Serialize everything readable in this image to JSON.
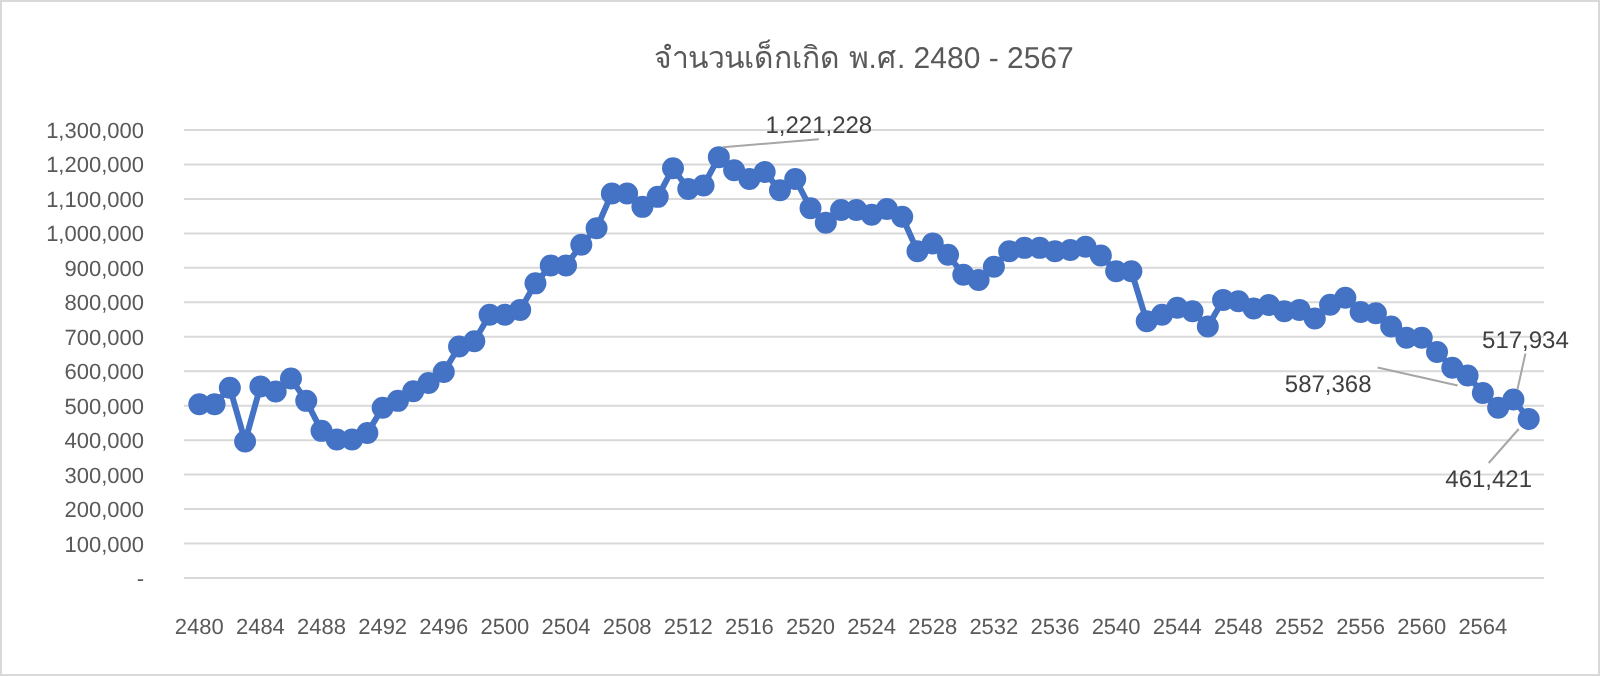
{
  "chart_data": {
    "type": "line",
    "title": "จำนวนเด็กเกิด พ.ศ. 2480 - 2567",
    "x": [
      2480,
      2481,
      2482,
      2483,
      2484,
      2485,
      2486,
      2487,
      2488,
      2489,
      2490,
      2491,
      2492,
      2493,
      2494,
      2495,
      2496,
      2497,
      2498,
      2499,
      2500,
      2501,
      2502,
      2503,
      2504,
      2505,
      2506,
      2507,
      2508,
      2509,
      2510,
      2511,
      2512,
      2513,
      2514,
      2515,
      2516,
      2517,
      2518,
      2519,
      2520,
      2521,
      2522,
      2523,
      2524,
      2525,
      2526,
      2527,
      2528,
      2529,
      2530,
      2531,
      2532,
      2533,
      2534,
      2535,
      2536,
      2537,
      2538,
      2539,
      2540,
      2541,
      2542,
      2543,
      2544,
      2545,
      2546,
      2547,
      2548,
      2549,
      2550,
      2551,
      2552,
      2553,
      2554,
      2555,
      2556,
      2557,
      2558,
      2559,
      2560,
      2561,
      2562,
      2563,
      2564,
      2565,
      2566,
      2567
    ],
    "series": [
      {
        "color": "#4472c4",
        "values": [
          504000,
          504000,
          552000,
          396000,
          556000,
          541000,
          579000,
          514000,
          427000,
          402000,
          402000,
          421000,
          494000,
          514000,
          542000,
          566000,
          598000,
          672000,
          687000,
          764000,
          764000,
          778000,
          855000,
          907000,
          907000,
          967000,
          1015000,
          1116000,
          1116000,
          1077000,
          1106000,
          1189000,
          1129000,
          1139000,
          1221228,
          1183000,
          1158000,
          1178000,
          1125000,
          1158000,
          1073000,
          1031000,
          1068000,
          1068000,
          1054000,
          1071000,
          1048000,
          948000,
          971000,
          938000,
          880000,
          865000,
          903000,
          948000,
          958000,
          958000,
          948000,
          952000,
          961000,
          936000,
          890000,
          890000,
          745000,
          764000,
          784000,
          774000,
          730000,
          807000,
          803000,
          782000,
          792000,
          774000,
          778000,
          753000,
          793000,
          813000,
          772000,
          768000,
          730000,
          697000,
          697000,
          656000,
          610000,
          587368,
          537000,
          494000,
          517934,
          461421
        ],
        "value_labels": [
          null,
          null,
          null,
          null,
          null,
          null,
          null,
          null,
          null,
          null,
          null,
          null,
          null,
          null,
          null,
          null,
          null,
          null,
          null,
          null,
          null,
          null,
          null,
          null,
          null,
          null,
          null,
          null,
          null,
          null,
          null,
          null,
          null,
          null,
          "1,221,228",
          null,
          null,
          null,
          null,
          null,
          null,
          null,
          null,
          null,
          null,
          null,
          null,
          null,
          null,
          null,
          null,
          null,
          null,
          null,
          null,
          null,
          null,
          null,
          null,
          null,
          null,
          null,
          null,
          null,
          null,
          null,
          null,
          null,
          null,
          null,
          null,
          null,
          null,
          null,
          null,
          null,
          null,
          null,
          null,
          null,
          null,
          null,
          null,
          "587,368",
          null,
          null,
          "517,934",
          "461,421"
        ]
      }
    ],
    "xlim": [
      2479,
      2568
    ],
    "xticks": [
      2480,
      2484,
      2488,
      2492,
      2496,
      2500,
      2504,
      2508,
      2512,
      2516,
      2520,
      2524,
      2528,
      2532,
      2536,
      2540,
      2544,
      2548,
      2552,
      2556,
      2560,
      2564
    ],
    "ylim": [
      0,
      1300000
    ],
    "yticks": [
      {
        "value": 0,
        "label": "-"
      },
      {
        "value": 100000,
        "label": "100,000"
      },
      {
        "value": 200000,
        "label": "200,000"
      },
      {
        "value": 300000,
        "label": "300,000"
      },
      {
        "value": 400000,
        "label": "400,000"
      },
      {
        "value": 500000,
        "label": "500,000"
      },
      {
        "value": 600000,
        "label": "600,000"
      },
      {
        "value": 700000,
        "label": "700,000"
      },
      {
        "value": 800000,
        "label": "800,000"
      },
      {
        "value": 900000,
        "label": "900,000"
      },
      {
        "value": 1000000,
        "label": "1,000,000"
      },
      {
        "value": 1100000,
        "label": "1,100,000"
      },
      {
        "value": 1200000,
        "label": "1,200,000"
      },
      {
        "value": 1300000,
        "label": "1,300,000"
      }
    ],
    "grid": "y",
    "marker": "circle",
    "line_style": "solid"
  }
}
